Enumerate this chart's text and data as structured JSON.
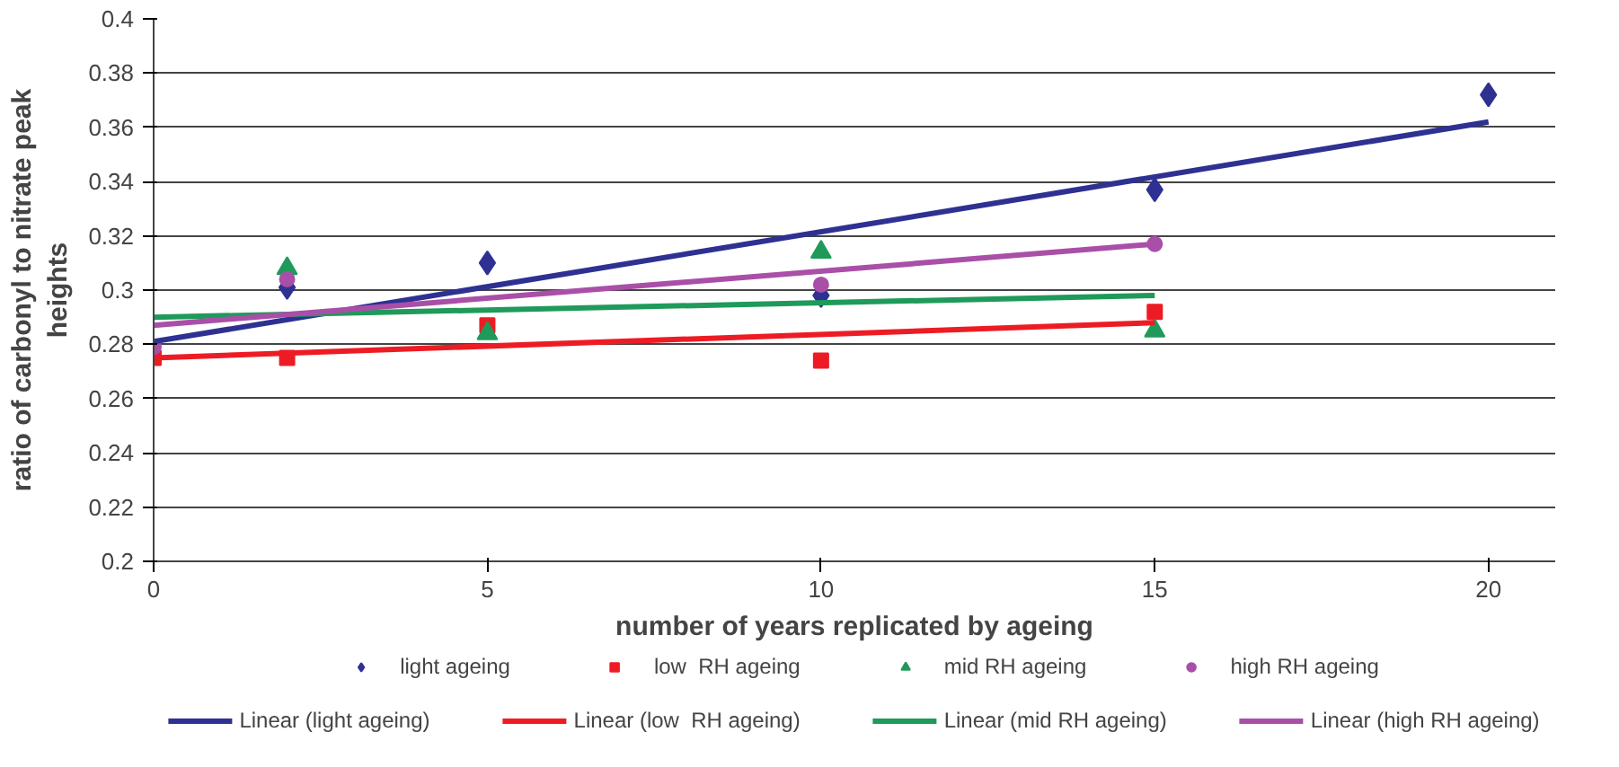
{
  "chart_data": {
    "type": "scatter",
    "xlabel": "number of years replicated by ageing",
    "ylabel": "ratio of carbonyl to nitrate peak\nheights",
    "xlim": [
      0,
      21
    ],
    "xticks": [
      0,
      5,
      10,
      15,
      20
    ],
    "ylim": [
      0.2,
      0.4
    ],
    "yticks": [
      0.2,
      0.22,
      0.24,
      0.26,
      0.28,
      0.3,
      0.32,
      0.34,
      0.36,
      0.38,
      0.4
    ],
    "grid": "y",
    "legend": "bottom",
    "series": [
      {
        "name": "light ageing",
        "color": "#2e3192",
        "marker": "diamond",
        "x": [
          2,
          5,
          10,
          15,
          20
        ],
        "values": [
          0.301,
          0.31,
          0.298,
          0.337,
          0.372
        ]
      },
      {
        "name": "low  RH ageing",
        "color": "#ed1c24",
        "marker": "square",
        "x": [
          0,
          2,
          5,
          10,
          15
        ],
        "values": [
          0.275,
          0.275,
          0.287,
          0.274,
          0.292
        ]
      },
      {
        "name": "mid RH ageing",
        "color": "#1f9a5a",
        "marker": "triangle",
        "x": [
          2,
          5,
          10,
          15
        ],
        "values": [
          0.308,
          0.284,
          0.314,
          0.285
        ]
      },
      {
        "name": "high RH ageing",
        "color": "#a94fa8",
        "marker": "circle",
        "x": [
          0,
          2,
          5,
          10,
          15
        ],
        "values": [
          0.279,
          0.304,
          null,
          0.302,
          0.317
        ]
      },
      {
        "name": "Linear (light ageing)",
        "type": "line",
        "color": "#2e3192",
        "x": [
          0,
          20
        ],
        "values": [
          0.281,
          0.362
        ]
      },
      {
        "name": "Linear (low  RH ageing)",
        "type": "line",
        "color": "#ed1c24",
        "x": [
          0,
          15
        ],
        "values": [
          0.275,
          0.288
        ]
      },
      {
        "name": "Linear (mid RH ageing)",
        "type": "line",
        "color": "#1f9a5a",
        "x": [
          0,
          15
        ],
        "values": [
          0.29,
          0.298
        ]
      },
      {
        "name": "Linear (high RH ageing)",
        "type": "line",
        "color": "#a94fa8",
        "x": [
          0,
          15
        ],
        "values": [
          0.287,
          0.317
        ]
      }
    ]
  }
}
